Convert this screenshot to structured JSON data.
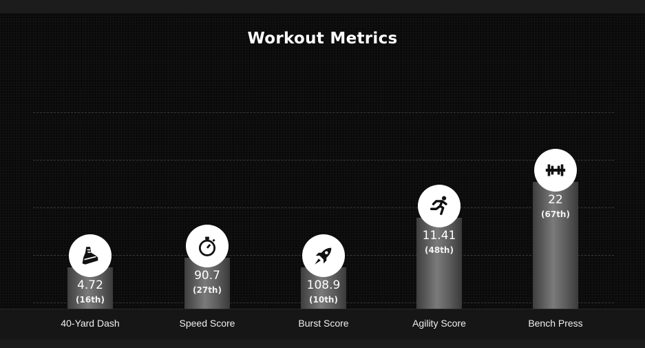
{
  "chart_data": {
    "type": "bar",
    "title": "Workout Metrics",
    "categories": [
      "40-Yard Dash",
      "Speed Score",
      "Burst Score",
      "Agility Score",
      "Bench Press"
    ],
    "series": [
      {
        "values": [
          4.72,
          90.7,
          108.9,
          11.41,
          22
        ],
        "value_labels": [
          "4.72",
          "90.7",
          "108.9",
          "11.41",
          "22"
        ],
        "percentile_values": [
          16,
          27,
          10,
          48,
          67
        ],
        "percentile_labels": [
          "(16th)",
          "(27th)",
          "(10th)",
          "(48th)",
          "(67th)"
        ]
      }
    ],
    "icons": [
      "running-shoe-icon",
      "stopwatch-icon",
      "rocket-icon",
      "sprinter-icon",
      "barbell-icon"
    ],
    "grid": true,
    "legend": "none",
    "colors": {
      "background": "#0a0a0a",
      "bar": "#5a5a5a",
      "icon_circle": "#ffffff",
      "text": "#ffffff"
    }
  }
}
